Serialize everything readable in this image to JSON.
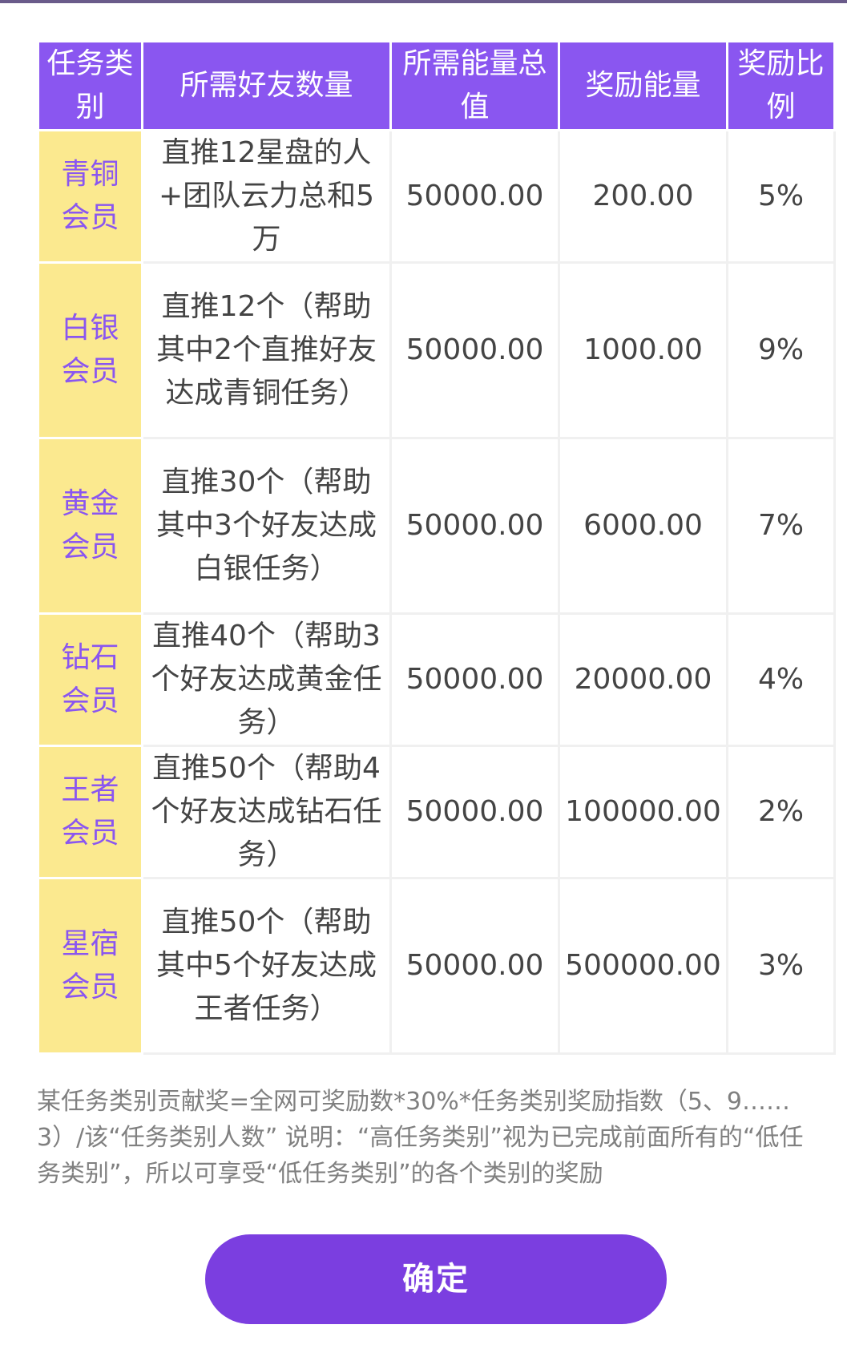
{
  "table": {
    "headers": [
      "任务类别",
      "所需好友数量",
      "所需能量总值",
      "奖励能量",
      "奖励比例"
    ],
    "rows": [
      {
        "category": "青铜会员",
        "requirement": "直推12星盘的人+团队云力总和5万",
        "energy_total": "50000.00",
        "reward_energy": "200.00",
        "reward_ratio": "5%"
      },
      {
        "category": "白银会员",
        "requirement": "直推12个（帮助其中2个直推好友达成青铜任务）",
        "energy_total": "50000.00",
        "reward_energy": "1000.00",
        "reward_ratio": "9%"
      },
      {
        "category": "黄金会员",
        "requirement": "直推30个（帮助其中3个好友达成白银任务）",
        "energy_total": "50000.00",
        "reward_energy": "6000.00",
        "reward_ratio": "7%"
      },
      {
        "category": "钻石会员",
        "requirement": "直推40个（帮助3个好友达成黄金任务）",
        "energy_total": "50000.00",
        "reward_energy": "20000.00",
        "reward_ratio": "4%"
      },
      {
        "category": "王者会员",
        "requirement": "直推50个（帮助4个好友达成钻石任务）",
        "energy_total": "50000.00",
        "reward_energy": "100000.00",
        "reward_ratio": "2%"
      },
      {
        "category": "星宿会员",
        "requirement": "直推50个（帮助其中5个好友达成王者任务）",
        "energy_total": "50000.00",
        "reward_energy": "500000.00",
        "reward_ratio": "3%"
      }
    ]
  },
  "note": "某任务类别贡献奖=全网可奖励数*30%*任务类别奖励指数（5、9……3）/该“任务类别人数” 说明：“高任务类别”视为已完成前面所有的“低任务类别”，所以可享受“低任务类别”的各个类别的奖励",
  "button": {
    "confirm_label": "确定"
  },
  "colors": {
    "header_bg": "#8a56f0",
    "category_bg": "#fbe98f",
    "category_text": "#8a56f0",
    "button_bg": "#7b3ee0"
  }
}
